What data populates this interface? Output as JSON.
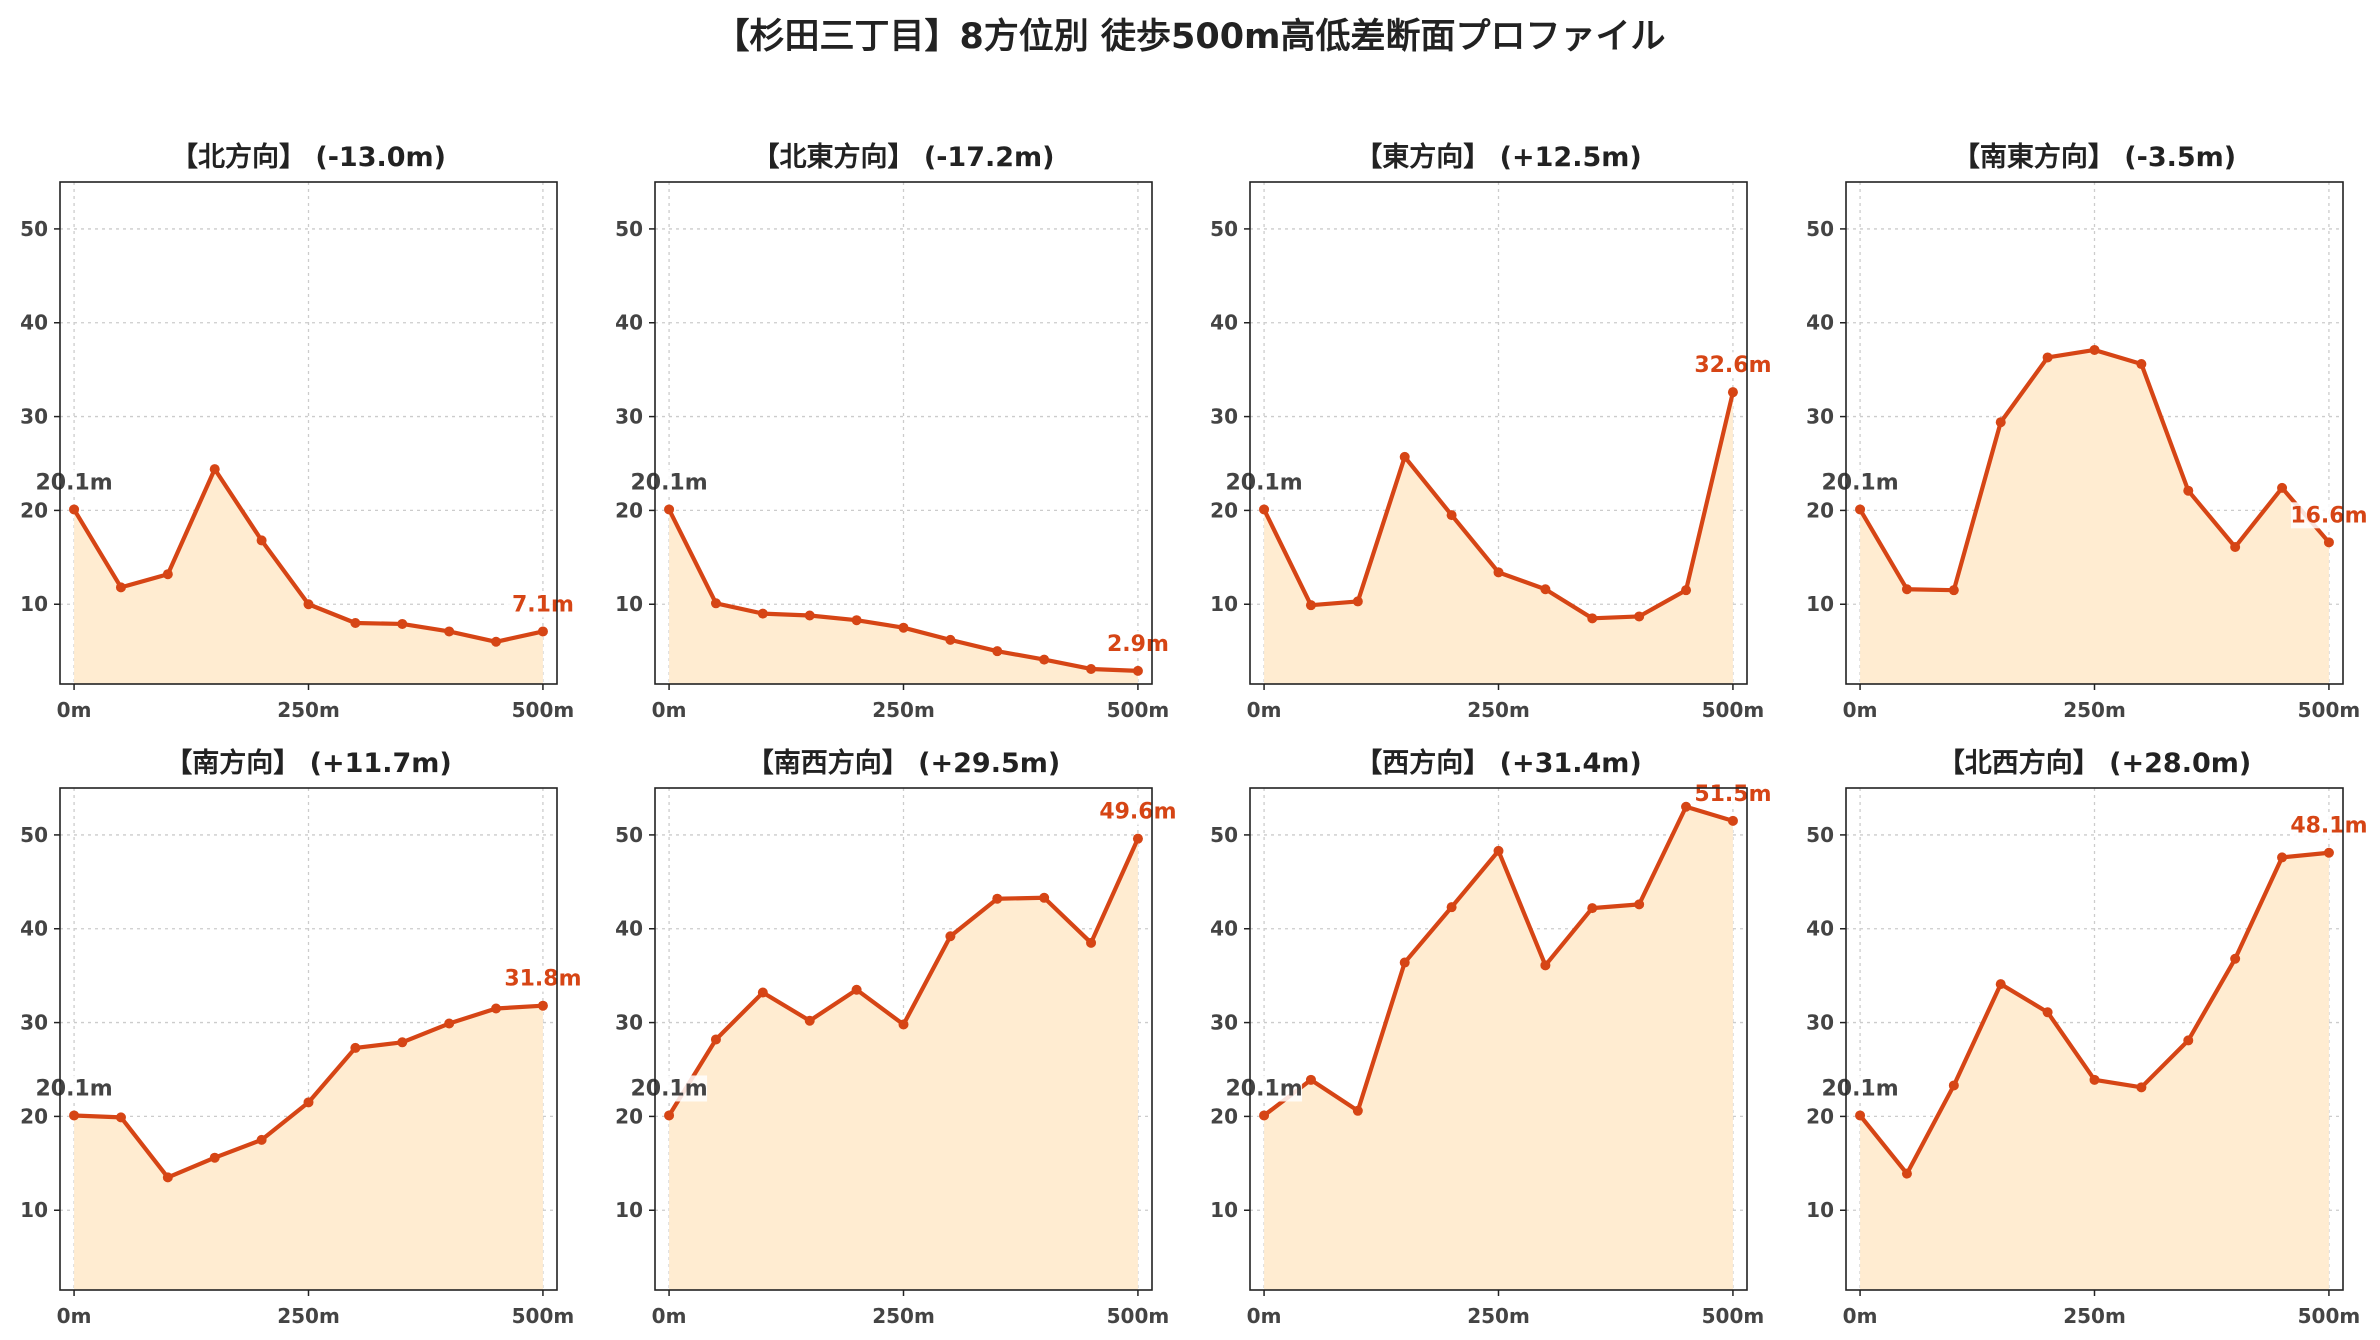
{
  "title": "【杉田三丁目】8方位別 徒歩500m高低差断面プロファイル",
  "chart_data": [
    {
      "type": "line",
      "title": "【北方向】 (-13.0m)",
      "x": [
        0,
        50,
        100,
        150,
        200,
        250,
        300,
        350,
        400,
        450,
        500
      ],
      "values": [
        20.1,
        11.8,
        13.2,
        24.4,
        16.8,
        10.0,
        8.0,
        7.9,
        7.1,
        6.0,
        7.1
      ],
      "start_label": "20.1m",
      "end_label": "7.1m",
      "xticks": [
        "0m",
        "250m",
        "500m"
      ],
      "yticks": [
        10,
        20,
        30,
        40,
        50
      ],
      "ylim": [
        1.5,
        55
      ],
      "xlim": [
        -15,
        515
      ],
      "grid": true
    },
    {
      "type": "line",
      "title": "【北東方向】 (-17.2m)",
      "x": [
        0,
        50,
        100,
        150,
        200,
        250,
        300,
        350,
        400,
        450,
        500
      ],
      "values": [
        20.1,
        10.1,
        9.0,
        8.8,
        8.3,
        7.5,
        6.2,
        5.0,
        4.1,
        3.1,
        2.9
      ],
      "start_label": "20.1m",
      "end_label": "2.9m",
      "xticks": [
        "0m",
        "250m",
        "500m"
      ],
      "yticks": [
        10,
        20,
        30,
        40,
        50
      ],
      "ylim": [
        1.5,
        55
      ],
      "xlim": [
        -15,
        515
      ],
      "grid": true
    },
    {
      "type": "line",
      "title": "【東方向】 (+12.5m)",
      "x": [
        0,
        50,
        100,
        150,
        200,
        250,
        300,
        350,
        400,
        450,
        500
      ],
      "values": [
        20.1,
        9.9,
        10.3,
        25.7,
        19.5,
        13.4,
        11.6,
        8.5,
        8.7,
        11.5,
        32.6
      ],
      "start_label": "20.1m",
      "end_label": "32.6m",
      "xticks": [
        "0m",
        "250m",
        "500m"
      ],
      "yticks": [
        10,
        20,
        30,
        40,
        50
      ],
      "ylim": [
        1.5,
        55
      ],
      "xlim": [
        -15,
        515
      ],
      "grid": true
    },
    {
      "type": "line",
      "title": "【南東方向】 (-3.5m)",
      "x": [
        0,
        50,
        100,
        150,
        200,
        250,
        300,
        350,
        400,
        450,
        500
      ],
      "values": [
        20.1,
        11.6,
        11.5,
        29.4,
        36.3,
        37.1,
        35.6,
        22.1,
        16.1,
        22.4,
        16.6
      ],
      "start_label": "20.1m",
      "end_label": "16.6m",
      "xticks": [
        "0m",
        "250m",
        "500m"
      ],
      "yticks": [
        10,
        20,
        30,
        40,
        50
      ],
      "ylim": [
        1.5,
        55
      ],
      "xlim": [
        -15,
        515
      ],
      "grid": true
    },
    {
      "type": "line",
      "title": "【南方向】 (+11.7m)",
      "x": [
        0,
        50,
        100,
        150,
        200,
        250,
        300,
        350,
        400,
        450,
        500
      ],
      "values": [
        20.1,
        19.9,
        13.5,
        15.6,
        17.5,
        21.5,
        27.3,
        27.9,
        29.9,
        31.5,
        31.8
      ],
      "start_label": "20.1m",
      "end_label": "31.8m",
      "xticks": [
        "0m",
        "250m",
        "500m"
      ],
      "yticks": [
        10,
        20,
        30,
        40,
        50
      ],
      "ylim": [
        1.5,
        55
      ],
      "xlim": [
        -15,
        515
      ],
      "grid": true
    },
    {
      "type": "line",
      "title": "【南西方向】 (+29.5m)",
      "x": [
        0,
        50,
        100,
        150,
        200,
        250,
        300,
        350,
        400,
        450,
        500
      ],
      "values": [
        20.1,
        28.2,
        33.2,
        30.2,
        33.5,
        29.8,
        39.2,
        43.2,
        43.3,
        38.5,
        49.6
      ],
      "start_label": "20.1m",
      "end_label": "49.6m",
      "xticks": [
        "0m",
        "250m",
        "500m"
      ],
      "yticks": [
        10,
        20,
        30,
        40,
        50
      ],
      "ylim": [
        1.5,
        55
      ],
      "xlim": [
        -15,
        515
      ],
      "grid": true
    },
    {
      "type": "line",
      "title": "【西方向】 (+31.4m)",
      "x": [
        0,
        50,
        100,
        150,
        200,
        250,
        300,
        350,
        400,
        450,
        500
      ],
      "values": [
        20.1,
        23.9,
        20.6,
        36.4,
        42.3,
        48.3,
        36.1,
        42.2,
        42.6,
        53.0,
        51.5
      ],
      "start_label": "20.1m",
      "end_label": "51.5m",
      "xticks": [
        "0m",
        "250m",
        "500m"
      ],
      "yticks": [
        10,
        20,
        30,
        40,
        50
      ],
      "ylim": [
        1.5,
        55
      ],
      "xlim": [
        -15,
        515
      ],
      "grid": true
    },
    {
      "type": "line",
      "title": "【北西方向】 (+28.0m)",
      "x": [
        0,
        50,
        100,
        150,
        200,
        250,
        300,
        350,
        400,
        450,
        500
      ],
      "values": [
        20.1,
        13.9,
        23.3,
        34.1,
        31.1,
        23.9,
        23.1,
        28.1,
        36.8,
        47.6,
        48.1
      ],
      "start_label": "20.1m",
      "end_label": "48.1m",
      "xticks": [
        "0m",
        "250m",
        "500m"
      ],
      "yticks": [
        10,
        20,
        30,
        40,
        50
      ],
      "ylim": [
        1.5,
        55
      ],
      "xlim": [
        -15,
        515
      ],
      "grid": true
    }
  ],
  "colors": {
    "line": "#d64515",
    "fill": "#ffecd1",
    "start_label": "#444444",
    "end_label": "#d64515"
  }
}
